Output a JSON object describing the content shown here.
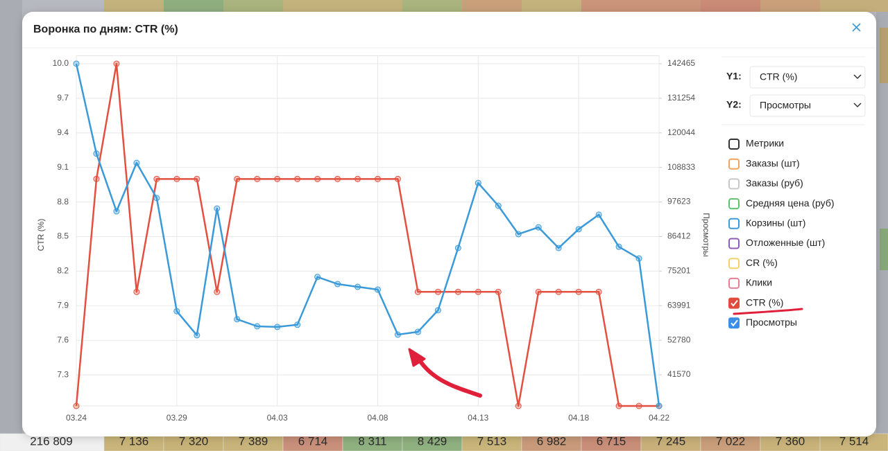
{
  "background": {
    "bottom_row": [
      "216 809",
      "7 136",
      "7 320",
      "7 389",
      "6 714",
      "8 311",
      "8 429",
      "7 513",
      "6 982",
      "6 715",
      "7 245",
      "7 022",
      "7 360",
      "7 514"
    ]
  },
  "modal": {
    "title": "Воронка по дням: CTR (%)"
  },
  "chart_data": {
    "type": "line",
    "categories": [
      "03.24",
      null,
      null,
      null,
      null,
      "03.29",
      null,
      null,
      null,
      null,
      "04.03",
      null,
      null,
      null,
      null,
      "04.08",
      null,
      null,
      null,
      null,
      "04.13",
      null,
      null,
      null,
      null,
      "04.18",
      null,
      null,
      null,
      "04.22"
    ],
    "series": [
      {
        "name": "CTR (%)",
        "color": "#e4503f",
        "axis": "y",
        "values": [
          7.03,
          9.0,
          10.0,
          8.02,
          9.0,
          9.0,
          9.0,
          8.02,
          9.0,
          9.0,
          9.0,
          9.0,
          9.0,
          9.0,
          9.0,
          9.0,
          9.0,
          8.02,
          8.02,
          8.02,
          8.02,
          8.02,
          7.03,
          8.02,
          8.02,
          8.02,
          8.02,
          7.03,
          7.03,
          7.03
        ]
      },
      {
        "name": "Просмотры",
        "color": "#3a9ad9",
        "axis": "y2",
        "values": [
          142465,
          113300,
          94600,
          110300,
          98900,
          62200,
          54400,
          95500,
          59600,
          57300,
          57100,
          57800,
          73300,
          71000,
          70100,
          69200,
          54600,
          55500,
          62500,
          82700,
          103800,
          96400,
          87200,
          89400,
          82700,
          88800,
          93500,
          83100,
          79300,
          31500
        ]
      }
    ],
    "ylim": [
      7.03,
      10.07
    ],
    "yticks": [
      {
        "value": 10.0,
        "label": "10.0"
      },
      9.7,
      9.4,
      9.1,
      8.8,
      8.5,
      8.2,
      7.9,
      7.6,
      7.3
    ],
    "y2lim": [
      31460,
      145070
    ],
    "y2ticks": [
      142465,
      131254,
      120044,
      108833,
      97623,
      86412,
      75201,
      63991,
      52780,
      41570
    ],
    "grid": true
  },
  "controls": {
    "y1": {
      "label": "Y1:",
      "value": "CTR (%)"
    },
    "y2": {
      "label": "Y2:",
      "value": "Просмотры"
    },
    "metrics": [
      {
        "name": "Метрики",
        "color": "#333333",
        "checked": false
      },
      {
        "name": "Заказы (шт)",
        "color": "#f0a35e",
        "checked": false
      },
      {
        "name": "Заказы (руб)",
        "color": "#c8c8c8",
        "checked": false
      },
      {
        "name": "Средняя цена (руб)",
        "color": "#5cc26e",
        "checked": false
      },
      {
        "name": "Корзины (шт)",
        "color": "#3b9ad9",
        "checked": false
      },
      {
        "name": "Отложенные (шт)",
        "color": "#8e5bb5",
        "checked": false
      },
      {
        "name": "CR (%)",
        "color": "#f2d36b",
        "checked": false
      },
      {
        "name": "Клики",
        "color": "#e77f94",
        "checked": false
      },
      {
        "name": "CTR (%)",
        "color": "#e04b3c",
        "checked": true
      },
      {
        "name": "Просмотры",
        "color": "#3a8ee6",
        "checked": true
      }
    ]
  }
}
